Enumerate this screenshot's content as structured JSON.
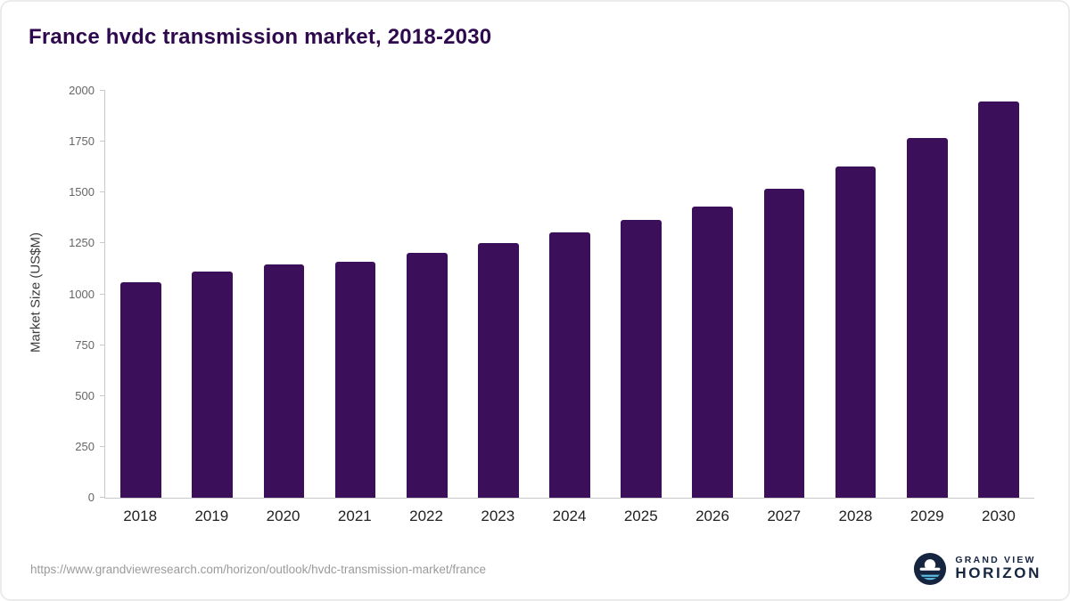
{
  "title": "France hvdc transmission market, 2018-2030",
  "colors": {
    "bar": "#3b0f59",
    "title_text": "#2f094d",
    "axis_line": "#c9c9c9",
    "tick_text": "#666666",
    "xlabel_text": "#222222",
    "url_text": "#9b9b9b",
    "brand_text": "#16253f",
    "logo_accent": "#5fc4e8"
  },
  "footer": {
    "source_url": "https://www.grandviewresearch.com/horizon/outlook/hvdc-transmission-market/france",
    "brand_top": "GRAND VIEW",
    "brand_bottom": "HORIZON"
  },
  "chart_data": {
    "type": "bar",
    "title": "France hvdc transmission market, 2018-2030",
    "categories": [
      "2018",
      "2019",
      "2020",
      "2021",
      "2022",
      "2023",
      "2024",
      "2025",
      "2026",
      "2027",
      "2028",
      "2029",
      "2030"
    ],
    "values": [
      1060,
      1110,
      1145,
      1160,
      1205,
      1250,
      1303,
      1364,
      1432,
      1520,
      1630,
      1770,
      1948
    ],
    "xlabel": "",
    "ylabel": "Market Size (US$M)",
    "ylim": [
      0,
      2000
    ],
    "yticks": [
      0,
      250,
      500,
      750,
      1000,
      1250,
      1500,
      1750,
      2000
    ],
    "grid": false,
    "legend": false,
    "bar_color": "#3b0f59"
  }
}
